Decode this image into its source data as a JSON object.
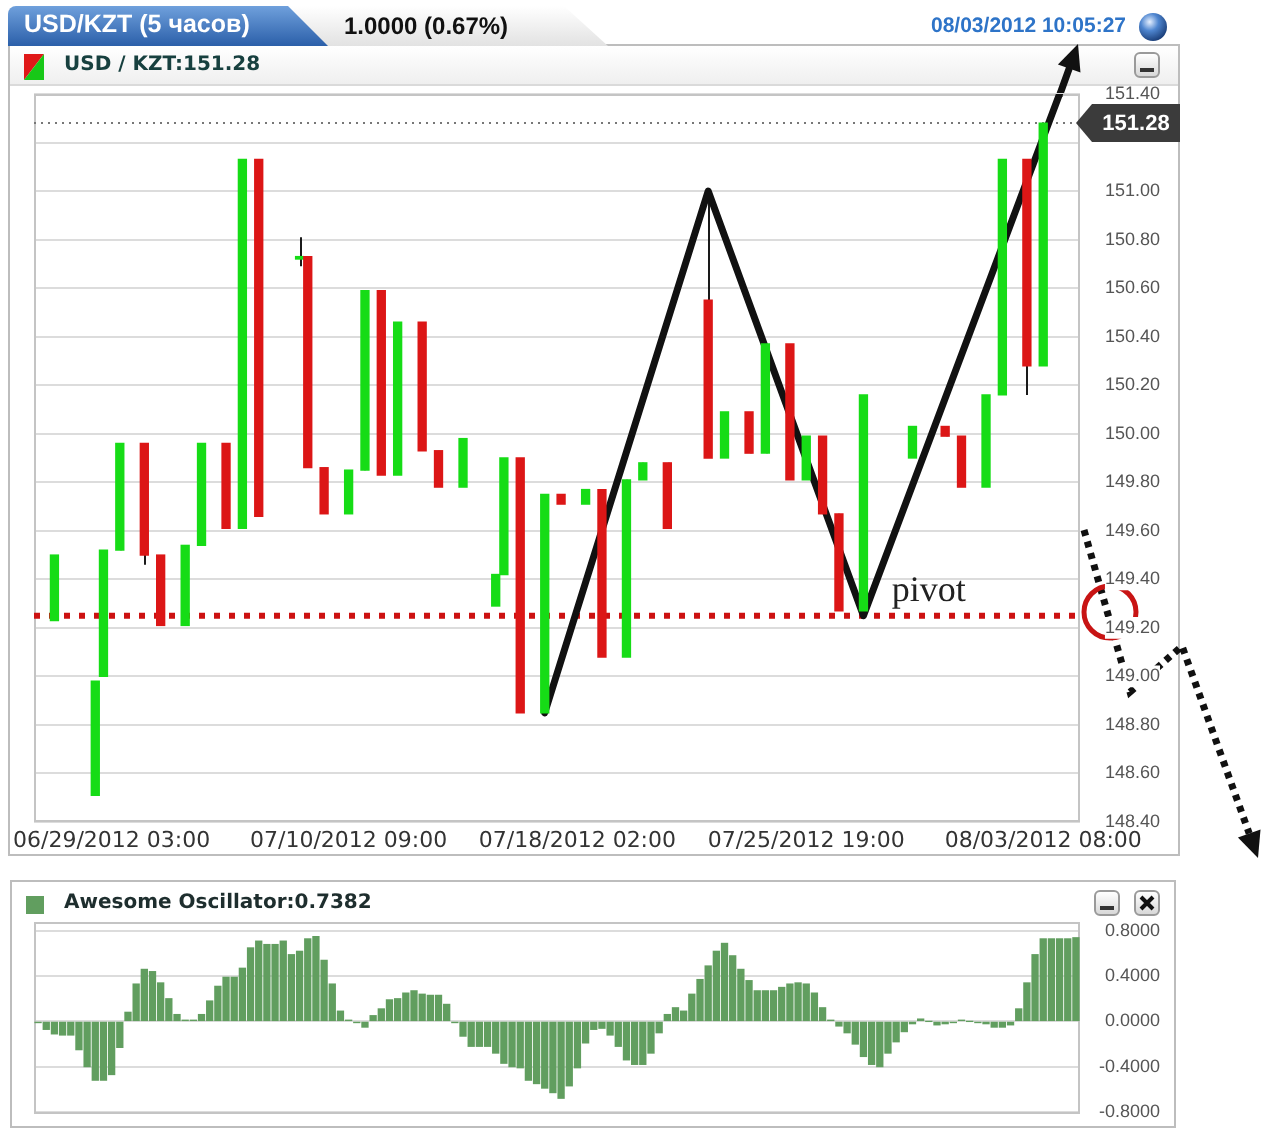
{
  "chart_data": [
    {
      "type": "candlestick",
      "title": "USD/KZT (5 часов)",
      "subtitle": "1.0000 (0.67%)",
      "annotations": [
        "08/03/2012 10:05:27",
        "USD / KZT:151.28"
      ],
      "categories": [
        null,
        null,
        null,
        null,
        null,
        null,
        null,
        null,
        null,
        "06/29/2012 03:00",
        null,
        null,
        null,
        null,
        null,
        null,
        null,
        null,
        null,
        null,
        null,
        null,
        null,
        null,
        null,
        null,
        null,
        null,
        null,
        null,
        null,
        null,
        null,
        null,
        null,
        null,
        null,
        null,
        "07/10/2012 09:00",
        null,
        null,
        null,
        null,
        null,
        null,
        null,
        null,
        null,
        null,
        null,
        null,
        null,
        null,
        null,
        null,
        null,
        null,
        null,
        null,
        null,
        null,
        null,
        null,
        null,
        null,
        null,
        "07/18/2012 02:00",
        null,
        null,
        null,
        null,
        null,
        null,
        null,
        null,
        null,
        null,
        null,
        null,
        null,
        null,
        null,
        null,
        null,
        null,
        null,
        null,
        null,
        null,
        null,
        null,
        null,
        null,
        null,
        "07/25/2012 19:00",
        null,
        null,
        null,
        null,
        null,
        null,
        null,
        null,
        null,
        null,
        null,
        null,
        null,
        null,
        null,
        null,
        null,
        null,
        null,
        null,
        null,
        null,
        null,
        null,
        null,
        null,
        null,
        null,
        "08/03/2012 08:00",
        null,
        null,
        null,
        null
      ],
      "ohlc": [
        null,
        null,
        [
          149.23,
          149.5,
          149.23,
          149.5
        ],
        null,
        null,
        null,
        null,
        [
          148.51,
          148.98,
          148.51,
          148.98
        ],
        [
          149.0,
          149.52,
          149.0,
          149.52
        ],
        null,
        [
          149.52,
          149.96,
          149.52,
          149.96
        ],
        null,
        null,
        [
          149.96,
          149.96,
          149.46,
          149.5
        ],
        null,
        [
          149.5,
          149.5,
          149.21,
          149.21
        ],
        null,
        null,
        [
          149.21,
          149.54,
          149.21,
          149.54
        ],
        null,
        [
          149.54,
          149.96,
          149.54,
          149.96
        ],
        null,
        null,
        [
          149.96,
          149.96,
          149.61,
          149.61
        ],
        null,
        [
          149.61,
          151.13,
          149.61,
          151.13
        ],
        null,
        [
          151.13,
          151.13,
          149.66,
          149.66
        ],
        null,
        null,
        null,
        null,
        [
          150.72,
          150.81,
          150.69,
          150.73
        ],
        [
          150.73,
          150.73,
          149.86,
          149.86
        ],
        null,
        [
          149.86,
          149.86,
          149.67,
          149.67
        ],
        null,
        null,
        [
          149.67,
          149.85,
          149.67,
          149.85
        ],
        null,
        [
          149.85,
          150.59,
          149.85,
          150.59
        ],
        null,
        [
          150.59,
          150.59,
          149.83,
          149.83
        ],
        null,
        [
          149.83,
          150.46,
          149.83,
          150.46
        ],
        null,
        null,
        [
          150.46,
          150.46,
          149.93,
          149.93
        ],
        null,
        [
          149.93,
          149.93,
          149.78,
          149.78
        ],
        null,
        null,
        [
          149.78,
          149.98,
          149.78,
          149.98
        ],
        null,
        null,
        null,
        [
          149.29,
          149.42,
          149.29,
          149.42
        ],
        [
          149.42,
          149.9,
          149.42,
          149.9
        ],
        null,
        [
          149.9,
          149.9,
          148.85,
          148.85
        ],
        null,
        null,
        [
          148.85,
          149.75,
          148.85,
          149.75
        ],
        null,
        [
          149.75,
          149.75,
          149.71,
          149.71
        ],
        null,
        null,
        [
          149.71,
          149.77,
          149.71,
          149.77
        ],
        null,
        [
          149.77,
          149.77,
          149.08,
          149.08
        ],
        null,
        null,
        [
          149.08,
          149.81,
          149.08,
          149.81
        ],
        null,
        [
          149.81,
          149.88,
          149.81,
          149.88
        ],
        null,
        null,
        [
          149.88,
          149.88,
          149.61,
          149.61
        ],
        null,
        null,
        null,
        null,
        [
          150.55,
          151.0,
          149.9,
          149.9
        ],
        null,
        [
          149.9,
          150.09,
          149.9,
          150.09
        ],
        null,
        null,
        [
          150.09,
          150.09,
          149.92,
          149.92
        ],
        null,
        [
          149.92,
          150.37,
          149.92,
          150.37
        ],
        null,
        null,
        [
          150.37,
          150.37,
          149.81,
          149.81
        ],
        null,
        [
          149.81,
          149.99,
          149.81,
          149.99
        ],
        null,
        [
          149.99,
          149.99,
          149.67,
          149.67
        ],
        null,
        [
          149.67,
          149.67,
          149.27,
          149.27
        ],
        null,
        null,
        [
          149.27,
          150.16,
          149.27,
          150.16
        ],
        null,
        null,
        null,
        null,
        null,
        [
          149.9,
          150.03,
          149.9,
          150.03
        ],
        null,
        null,
        null,
        [
          150.03,
          150.03,
          149.99,
          149.99
        ],
        null,
        [
          149.99,
          149.99,
          149.78,
          149.78
        ],
        null,
        null,
        [
          149.78,
          150.16,
          149.78,
          150.16
        ],
        null,
        [
          150.16,
          151.13,
          150.16,
          151.13
        ],
        null,
        null,
        [
          151.13,
          151.13,
          150.16,
          150.28
        ],
        null,
        [
          150.28,
          151.28,
          150.28,
          151.28
        ],
        null,
        null,
        null,
        null
      ],
      "colors": [
        null,
        null,
        "#16dc16",
        null,
        null,
        null,
        null,
        "#16dc16",
        "#16dc16",
        null,
        "#16dc16",
        null,
        null,
        "#dc1616",
        null,
        "#dc1616",
        null,
        null,
        "#16dc16",
        null,
        "#16dc16",
        null,
        null,
        "#dc1616",
        null,
        "#16dc16",
        null,
        "#dc1616",
        null,
        null,
        null,
        null,
        "#16dc16",
        "#dc1616",
        null,
        "#dc1616",
        null,
        null,
        "#16dc16",
        null,
        "#16dc16",
        null,
        "#dc1616",
        null,
        "#16dc16",
        null,
        null,
        "#dc1616",
        null,
        "#dc1616",
        null,
        null,
        "#16dc16",
        null,
        null,
        null,
        "#16dc16",
        "#16dc16",
        null,
        "#dc1616",
        null,
        null,
        "#16dc16",
        null,
        "#dc1616",
        null,
        null,
        "#16dc16",
        null,
        "#dc1616",
        null,
        null,
        "#16dc16",
        null,
        "#16dc16",
        null,
        null,
        "#dc1616",
        null,
        null,
        null,
        null,
        "#dc1616",
        null,
        "#16dc16",
        null,
        null,
        "#dc1616",
        null,
        "#16dc16",
        null,
        null,
        "#dc1616",
        null,
        "#16dc16",
        null,
        "#dc1616",
        null,
        "#dc1616",
        null,
        null,
        "#16dc16",
        null,
        null,
        null,
        null,
        null,
        "#16dc16",
        null,
        null,
        null,
        "#dc1616",
        null,
        "#dc1616",
        null,
        null,
        "#16dc16",
        null,
        "#16dc16",
        null,
        null,
        "#dc1616",
        null,
        "#16dc16",
        null,
        null,
        null,
        null
      ],
      "series": [
        {
          "type": "line",
          "color": "#111111",
          "marker": "none",
          "values": [
            null,
            null,
            null,
            null,
            null,
            null,
            null,
            null,
            null,
            null,
            null,
            null,
            null,
            null,
            null,
            null,
            null,
            null,
            null,
            null,
            null,
            null,
            null,
            null,
            null,
            null,
            null,
            null,
            null,
            null,
            null,
            null,
            null,
            null,
            null,
            null,
            null,
            null,
            null,
            null,
            null,
            null,
            null,
            null,
            null,
            null,
            null,
            null,
            null,
            null,
            null,
            null,
            null,
            null,
            null,
            null,
            null,
            null,
            null,
            null,
            null,
            null,
            148.85,
            null,
            null,
            null,
            null,
            null,
            null,
            null,
            null,
            null,
            null,
            null,
            null,
            null,
            null,
            null,
            null,
            null,
            null,
            null,
            151.0,
            null,
            null,
            null,
            null,
            null,
            null,
            null,
            null,
            null,
            null,
            null,
            null,
            null,
            null,
            null,
            null,
            null,
            null,
            149.25,
            null,
            null,
            null,
            null,
            null,
            null,
            null,
            null,
            null,
            null,
            null,
            null,
            null,
            null,
            null,
            null,
            null,
            null,
            null,
            null,
            null,
            null,
            null,
            151.4,
            null,
            null
          ]
        }
      ],
      "ylim": [
        148.4,
        151.4
      ],
      "yticks": [
        {
          "value": 148.4,
          "label": "148.40"
        },
        {
          "value": 148.6,
          "label": "148.60"
        },
        {
          "value": 148.8,
          "label": "148.80"
        },
        {
          "value": 149.0,
          "label": "149.00"
        },
        {
          "value": 149.2,
          "label": "149.20"
        },
        {
          "value": 149.4,
          "label": "149.40"
        },
        {
          "value": 149.6,
          "label": "149.60"
        },
        {
          "value": 149.8,
          "label": "149.80"
        },
        {
          "value": 150.0,
          "label": "150.00"
        },
        {
          "value": 150.2,
          "label": "150.20"
        },
        {
          "value": 150.4,
          "label": "150.40"
        },
        {
          "value": 150.6,
          "label": "150.60"
        },
        {
          "value": 150.8,
          "label": "150.80"
        },
        {
          "value": 151.0,
          "label": "151.00"
        },
        {
          "value": 151.2,
          "label": null
        },
        {
          "value": 151.4,
          "label": "151.40"
        }
      ],
      "grid": "y",
      "ref_lines": [
        {
          "axis": "y",
          "value": 151.28,
          "label": "151.28",
          "color": "#777777",
          "line_style": "dotted"
        },
        {
          "axis": "y",
          "value": 149.25,
          "label": "pivot",
          "color": "#cc1111",
          "line_style": "dotted"
        }
      ]
    },
    {
      "type": "bar",
      "title": "Awesome Oscillator:0.7382",
      "categories": [
        null,
        null,
        null,
        null,
        null,
        null,
        null,
        null,
        null,
        null,
        null,
        null,
        null,
        null,
        null,
        null,
        null,
        null,
        null,
        null,
        null,
        null,
        null,
        null,
        null,
        null,
        null,
        null,
        null,
        null,
        null,
        null,
        null,
        null,
        null,
        null,
        null,
        null,
        null,
        null,
        null,
        null,
        null,
        null,
        null,
        null,
        null,
        null,
        null,
        null,
        null,
        null,
        null,
        null,
        null,
        null,
        null,
        null,
        null,
        null,
        null,
        null,
        null,
        null,
        null,
        null,
        null,
        null,
        null,
        null,
        null,
        null,
        null,
        null,
        null,
        null,
        null,
        null,
        null,
        null,
        null,
        null,
        null,
        null,
        null,
        null,
        null,
        null,
        null,
        null,
        null,
        null,
        null,
        null,
        null,
        null,
        null,
        null,
        null,
        null,
        null,
        null,
        null,
        null,
        null,
        null,
        null,
        null,
        null,
        null,
        null,
        null,
        null,
        null,
        null,
        null,
        null,
        null,
        null,
        null,
        null,
        null,
        null,
        null,
        null,
        null,
        null,
        null
      ],
      "values": [
        -0.01,
        -0.07,
        -0.11,
        -0.12,
        -0.12,
        -0.25,
        -0.4,
        -0.52,
        -0.52,
        -0.47,
        -0.23,
        0.08,
        0.33,
        0.46,
        0.44,
        0.34,
        0.2,
        0.06,
        0.01,
        0.01,
        0.06,
        0.18,
        0.31,
        0.39,
        0.39,
        0.47,
        0.65,
        0.71,
        0.68,
        0.68,
        0.71,
        0.59,
        0.62,
        0.73,
        0.75,
        0.54,
        0.33,
        0.09,
        0.01,
        -0.01,
        -0.05,
        0.05,
        0.11,
        0.19,
        0.2,
        0.25,
        0.27,
        0.24,
        0.23,
        0.23,
        0.15,
        -0.01,
        -0.13,
        -0.22,
        -0.22,
        -0.22,
        -0.28,
        -0.37,
        -0.4,
        -0.41,
        -0.52,
        -0.55,
        -0.59,
        -0.63,
        -0.68,
        -0.57,
        -0.41,
        -0.19,
        -0.07,
        -0.06,
        -0.12,
        -0.22,
        -0.34,
        -0.38,
        -0.38,
        -0.28,
        -0.1,
        0.06,
        0.12,
        0.09,
        0.24,
        0.37,
        0.49,
        0.62,
        0.69,
        0.58,
        0.46,
        0.36,
        0.27,
        0.27,
        0.27,
        0.3,
        0.33,
        0.34,
        0.33,
        0.25,
        0.12,
        0.01,
        -0.04,
        -0.1,
        -0.2,
        -0.31,
        -0.38,
        -0.4,
        -0.28,
        -0.18,
        -0.09,
        -0.02,
        0.02,
        0,
        -0.03,
        -0.02,
        -0.01,
        0.01,
        0,
        -0.01,
        -0.02,
        -0.05,
        -0.05,
        -0.03,
        0.11,
        0.34,
        0.59,
        0.73,
        0.73,
        0.73,
        0.73,
        0.74
      ],
      "color": "#619e5f",
      "ylim": [
        -0.82,
        0.88
      ],
      "yticks": [
        {
          "value": -0.8,
          "label": "-0.8000"
        },
        {
          "value": -0.4,
          "label": "-0.4000"
        },
        {
          "value": 0,
          "label": "0.0000"
        },
        {
          "value": 0.4,
          "label": "0.4000"
        },
        {
          "value": 0.8,
          "label": "0.8000"
        }
      ],
      "grid": "y",
      "tick_labels": "y"
    }
  ]
}
